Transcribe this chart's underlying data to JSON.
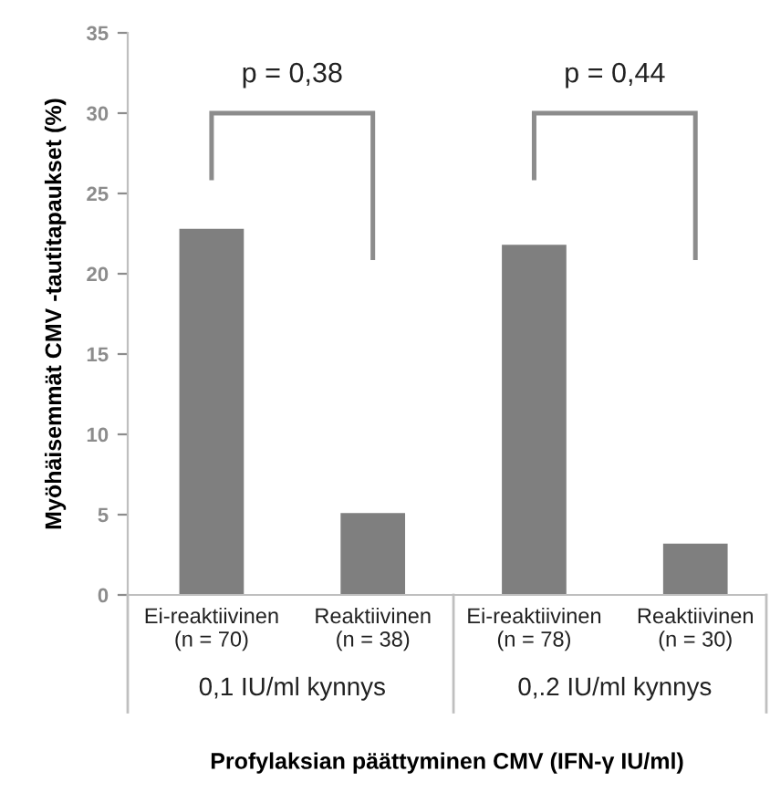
{
  "chart_data": {
    "type": "bar",
    "categories": [
      "Ei-reaktiivinen\n(n = 70)",
      "Reaktiivinen\n(n = 38)",
      "Ei-reaktiivinen\n(n = 78)",
      "Reaktiivinen\n(n = 30)"
    ],
    "values": [
      22.8,
      5.1,
      21.8,
      3.2
    ],
    "color": "#7f7f7f",
    "ylim": [
      0,
      35
    ],
    "yticks": [
      0,
      5,
      10,
      15,
      20,
      25,
      30,
      35
    ],
    "xlabel": "Profylaksian päättyminen CMV (IFN-γ IU/ml)",
    "ylabel": "Myöhäisemmät CMV -tautitapaukset (%)",
    "annotations": [
      "p = 0,38",
      "p = 0,44",
      "0,1 IU/ml kynnys",
      "0,.2 IU/ml kynnys"
    ],
    "grid": false,
    "legend": false
  }
}
